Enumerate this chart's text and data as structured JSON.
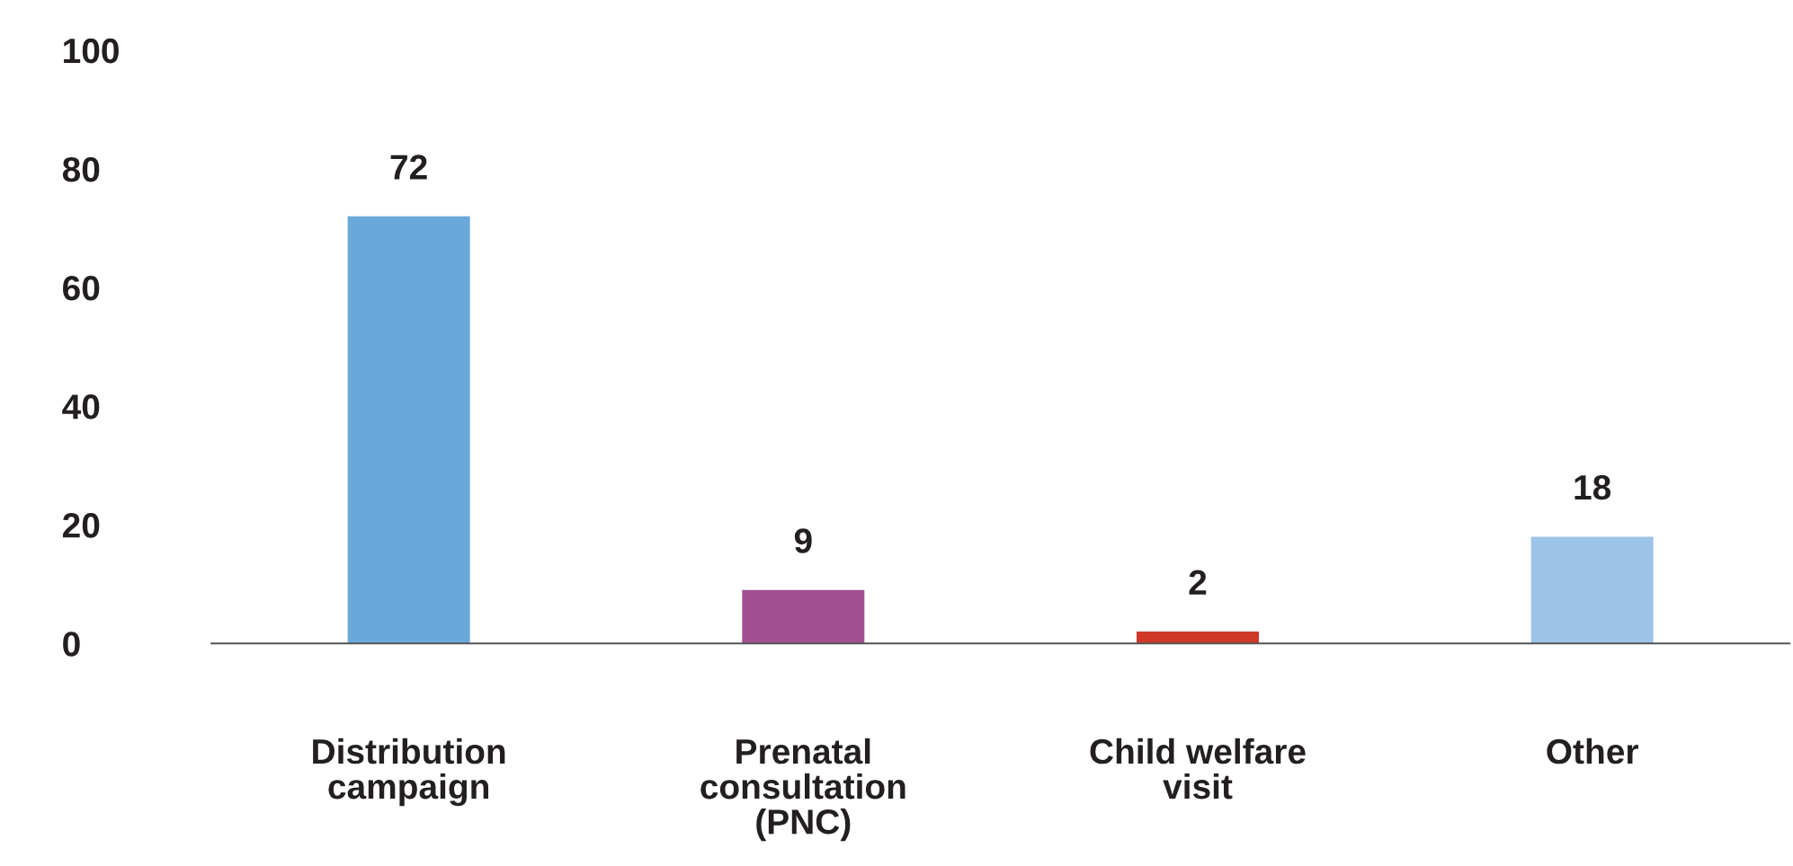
{
  "chart_data": {
    "type": "bar",
    "categories": [
      "Distribution\ncampaign",
      "Prenatal\nconsultation\n(PNC)",
      "Child welfare\nvisit",
      "Other"
    ],
    "values": [
      72,
      9,
      2,
      18
    ],
    "colors": [
      "#6aa8dc",
      "#a05090",
      "#d0382a",
      "#9dc3e6"
    ],
    "ylim": [
      0,
      100
    ],
    "yticks": [
      0,
      20,
      40,
      60,
      80,
      100
    ],
    "data_labels": true,
    "grid": false,
    "legend": false
  }
}
